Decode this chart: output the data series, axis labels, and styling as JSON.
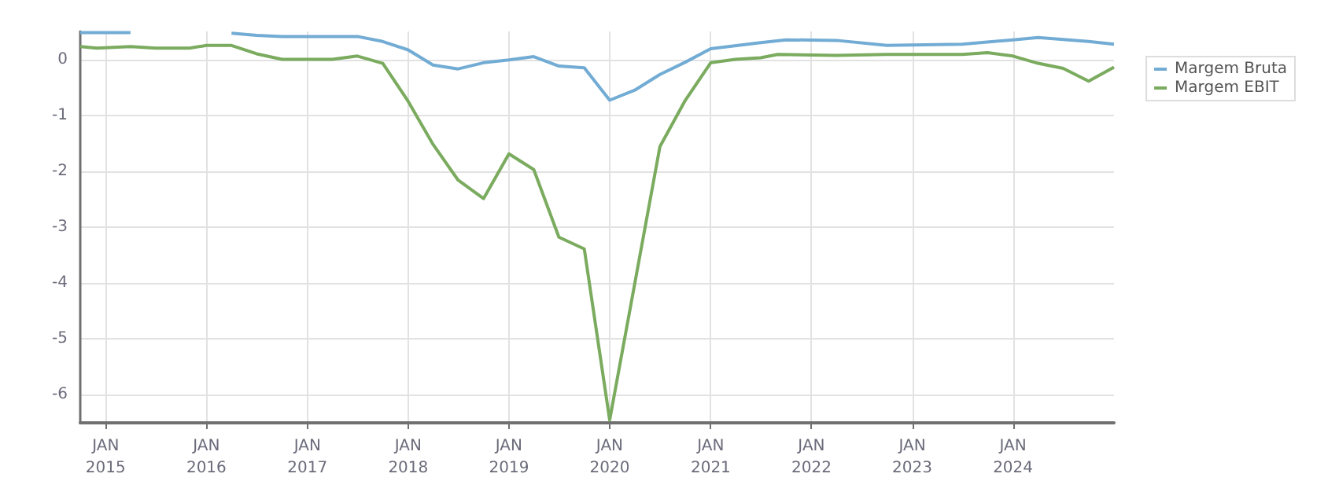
{
  "chart_data": {
    "type": "line",
    "x": [
      "2014-10",
      "2015-04",
      "2015-07",
      "2015-10",
      "2016-01",
      "2016-04",
      "2016-07",
      "2016-10",
      "2017-07",
      "2017-10",
      "2018-01",
      "2018-04",
      "2018-07",
      "2018-10",
      "2019-01",
      "2019-04",
      "2019-07",
      "2019-10",
      "2020-01",
      "2020-04",
      "2020-07",
      "2020-10",
      "2021-01",
      "2021-07",
      "2021-10",
      "2022-04",
      "2022-10",
      "2023-07",
      "2024-01",
      "2024-04",
      "2024-10",
      "2025-01"
    ],
    "series": [
      {
        "name": "Margem Bruta",
        "color": "#72acd4",
        "values": [
          0.48,
          0.48,
          null,
          null,
          null,
          0.47,
          0.43,
          0.41,
          0.41,
          0.32,
          0.17,
          -0.1,
          -0.17,
          -0.06,
          -0.01,
          0.05,
          -0.12,
          -0.15,
          -0.73,
          -0.55,
          -0.27,
          -0.05,
          0.19,
          0.3,
          0.35,
          0.34,
          0.25,
          0.27,
          0.35,
          0.39,
          0.32,
          0.27
        ]
      },
      {
        "name": "Margem EBIT",
        "color": "#7aab5e",
        "x": [
          "2014-10",
          "2014-12",
          "2015-04",
          "2015-07",
          "2015-11",
          "2016-01",
          "2016-04",
          "2016-07",
          "2016-10",
          "2017-04",
          "2017-07",
          "2017-10",
          "2018-01",
          "2018-04",
          "2018-07",
          "2018-10",
          "2019-01",
          "2019-04",
          "2019-07",
          "2019-10",
          "2020-01",
          "2020-07",
          "2020-10",
          "2021-01",
          "2021-04",
          "2021-07",
          "2021-09",
          "2022-04",
          "2022-10",
          "2023-07",
          "2023-10",
          "2024-01",
          "2024-04",
          "2024-07",
          "2024-10",
          "2025-01"
        ],
        "values": [
          0.23,
          0.2,
          0.23,
          0.2,
          0.2,
          0.25,
          0.25,
          0.1,
          0,
          0,
          0.06,
          -0.07,
          -0.75,
          -1.52,
          -2.16,
          -2.49,
          -1.69,
          -1.97,
          -3.18,
          -3.39,
          -6.45,
          -1.56,
          -0.73,
          -0.06,
          0,
          0.03,
          0.09,
          0.07,
          0.09,
          0.09,
          0.12,
          0.06,
          -0.07,
          -0.16,
          -0.39,
          -0.14
        ]
      }
    ],
    "xlim": [
      "2014-10",
      "2025-01"
    ],
    "xticks": [
      {
        "value": "2015-01",
        "label": "JAN\n2015"
      },
      {
        "value": "2016-01",
        "label": "JAN\n2016"
      },
      {
        "value": "2017-01",
        "label": "JAN\n2017"
      },
      {
        "value": "2018-01",
        "label": "JAN\n2018"
      },
      {
        "value": "2019-01",
        "label": "JAN\n2019"
      },
      {
        "value": "2020-01",
        "label": "JAN\n2020"
      },
      {
        "value": "2021-01",
        "label": "JAN\n2021"
      },
      {
        "value": "2022-01",
        "label": "JAN\n2022"
      },
      {
        "value": "2023-01",
        "label": "JAN\n2023"
      },
      {
        "value": "2024-01",
        "label": "JAN\n2024"
      }
    ],
    "ylim": [
      -6.5,
      0.5
    ],
    "yticks": [
      -6,
      -5,
      -4,
      -3,
      -2,
      -1,
      0
    ],
    "grid": true,
    "legend": "top right",
    "marker": "none"
  }
}
